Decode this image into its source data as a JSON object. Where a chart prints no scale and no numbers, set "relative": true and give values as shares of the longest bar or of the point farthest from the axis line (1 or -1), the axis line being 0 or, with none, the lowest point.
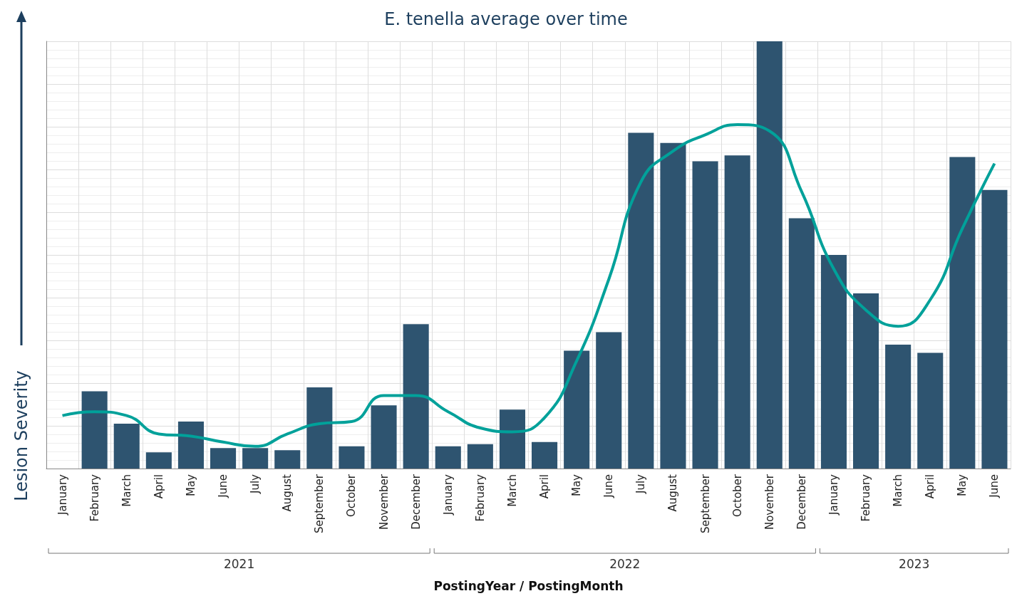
{
  "chart_data": {
    "type": "bar",
    "title": "E. tenella average over time",
    "xlabel": "PostingYear / PostingMonth",
    "ylabel": "Lesion Severity",
    "relative": true,
    "grid": true,
    "categories": [
      "January",
      "February",
      "March",
      "April",
      "May",
      "June",
      "July",
      "August",
      "September",
      "October",
      "November",
      "December",
      "January",
      "February",
      "March",
      "April",
      "May",
      "June",
      "July",
      "August",
      "September",
      "October",
      "November",
      "December",
      "January",
      "February",
      "March",
      "April",
      "May",
      "June"
    ],
    "series": [
      {
        "color": "#2e5470",
        "values": [
          null,
          0.181,
          0.105,
          0.038,
          0.11,
          0.048,
          0.048,
          0.043,
          0.19,
          0.052,
          0.148,
          0.338,
          0.052,
          0.057,
          0.138,
          0.062,
          0.276,
          0.319,
          0.786,
          0.762,
          0.719,
          0.733,
          1,
          0.586,
          0.5,
          0.41,
          0.29,
          0.271,
          0.729,
          0.652
        ]
      },
      {
        "type": "line",
        "color": "#00a19a",
        "values": [
          0.124,
          0.133,
          0.124,
          0.081,
          0.076,
          0.062,
          0.052,
          0.081,
          0.105,
          0.11,
          0.171,
          0.171,
          0.133,
          0.095,
          0.086,
          0.119,
          0.252,
          0.443,
          0.671,
          0.743,
          0.781,
          0.805,
          0.79,
          0.648,
          0.467,
          0.371,
          0.333,
          0.395,
          0.562,
          0.714
        ]
      }
    ],
    "annotations": [
      "2021",
      "2022",
      "2023"
    ]
  }
}
